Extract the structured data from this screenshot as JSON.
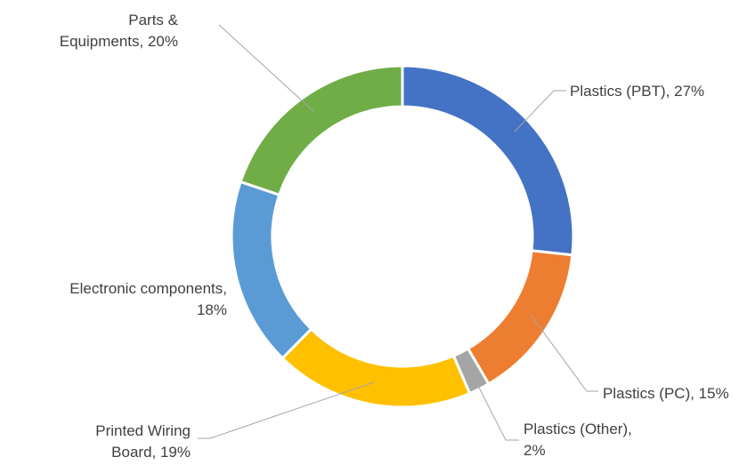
{
  "chart_data": {
    "type": "pie",
    "style": "donut",
    "categories": [
      "Plastics (PBT)",
      "Plastics (PC)",
      "Plastics (Other)",
      "Printed Wiring Board",
      "Electronic components",
      "Parts & Equipments"
    ],
    "values": [
      27,
      15,
      2,
      19,
      18,
      20
    ],
    "unit": "%",
    "colors": [
      "#4472c4",
      "#ed7d31",
      "#a5a5a5",
      "#ffc000",
      "#5b9bd5",
      "#70ad47"
    ],
    "labels": [
      {
        "lines": [
          "Plastics (PBT), 27%"
        ]
      },
      {
        "lines": [
          "Plastics (PC), 15%"
        ]
      },
      {
        "lines": [
          "Plastics (Other),",
          "2%"
        ]
      },
      {
        "lines": [
          "Printed Wiring",
          "Board, 19%"
        ]
      },
      {
        "lines": [
          "Electronic components,",
          "18%"
        ]
      },
      {
        "lines": [
          "Parts &",
          "Equipments, 20%"
        ]
      }
    ],
    "legend": "none"
  }
}
